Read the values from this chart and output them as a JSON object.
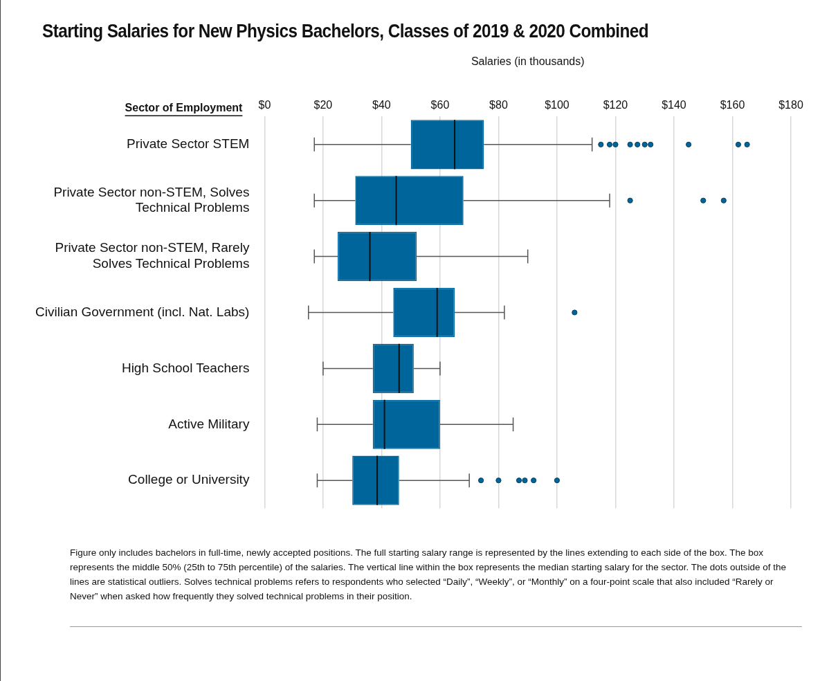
{
  "chart_data": {
    "type": "box",
    "orientation": "horizontal",
    "title": "Starting Salaries for New Physics Bachelors, Classes of 2019 & 2020 Combined",
    "xlabel": "Salaries (in thousands)",
    "ylabel": "Sector of Employment",
    "categories": [
      "Private Sector STEM",
      "Private Sector non-STEM, Solves Technical Problems",
      "Private Sector non-STEM, Rarely Solves Technical Problems",
      "Civilian Government (incl. Nat. Labs)",
      "High School Teachers",
      "Active Military",
      "College or University"
    ],
    "boxes": [
      {
        "low": 17,
        "q1": 50,
        "median": 65,
        "q3": 75,
        "high": 112,
        "outliers": [
          115,
          118,
          120,
          125,
          127.5,
          130,
          132,
          145,
          162,
          165
        ]
      },
      {
        "low": 17,
        "q1": 31,
        "median": 45,
        "q3": 68,
        "high": 118,
        "outliers": [
          125,
          150,
          157
        ]
      },
      {
        "low": 17,
        "q1": 25,
        "median": 36,
        "q3": 52,
        "high": 90
      },
      {
        "low": 15,
        "q1": 44,
        "median": 59,
        "q3": 65,
        "high": 82,
        "outliers": [
          106
        ]
      },
      {
        "low": 20,
        "q1": 37,
        "median": 46,
        "q3": 51,
        "high": 60
      },
      {
        "low": 18,
        "q1": 37,
        "median": 41,
        "q3": 60,
        "high": 85
      },
      {
        "low": 18,
        "q1": 30,
        "median": 38.5,
        "q3": 46,
        "high": 70,
        "outliers": [
          74,
          80,
          87,
          89,
          92,
          100
        ]
      }
    ],
    "color": "#00659a",
    "xlim": [
      0,
      180
    ],
    "xticks": [
      {
        "value": 0,
        "label": "$0"
      },
      {
        "value": 20,
        "label": "$20"
      },
      {
        "value": 40,
        "label": "$40"
      },
      {
        "value": 60,
        "label": "$60"
      },
      {
        "value": 80,
        "label": "$80"
      },
      {
        "value": 100,
        "label": "$100"
      },
      {
        "value": 120,
        "label": "$120"
      },
      {
        "value": 140,
        "label": "$140"
      },
      {
        "value": 160,
        "label": "$160"
      },
      {
        "value": 180,
        "label": "$180"
      }
    ],
    "grid": "x",
    "legend": false,
    "annotations": [
      "Figure only includes bachelors in full-time, newly accepted positions. The full starting salary range is represented by the lines extending to each side of the box. The box represents the middle 50% (25th to 75th percentile) of the salaries. The vertical line within the box represents the median starting salary for the sector. The dots outside of the lines are statistical outliers. Solves technical problems refers to respondents who selected “Daily”, “Weekly”, or “Monthly” on a four-point scale that also included “Rarely or Never” when asked how frequently they solved technical problems in their position."
    ]
  }
}
